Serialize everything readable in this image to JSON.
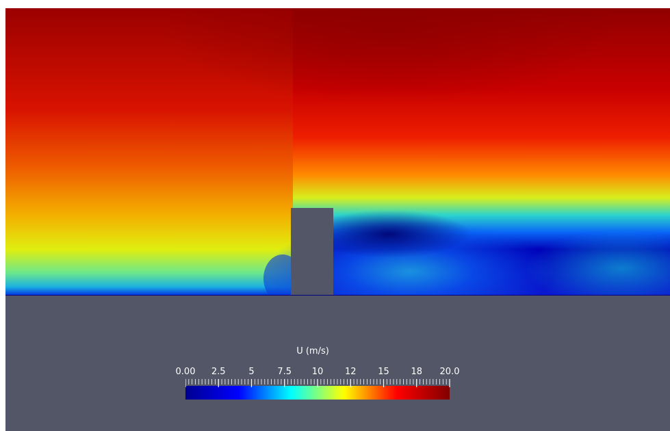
{
  "chart_data": {
    "type": "heatmap",
    "title": "",
    "colorbar": {
      "title": "U (m/s)",
      "range": [
        0,
        20
      ],
      "tick_values": [
        0,
        2.5,
        5,
        7.5,
        10,
        12.5,
        15,
        17.5,
        20
      ],
      "tick_labels": [
        "0.00",
        "2.5",
        "5",
        "7.5",
        "10",
        "12",
        "15",
        "18",
        "20.0"
      ],
      "colormap": "jet",
      "colors": [
        "#00008f",
        "#0000ff",
        "#00ffff",
        "#ffff00",
        "#ff0000",
        "#800000"
      ]
    },
    "field_description_values": {
      "freestream_top_m_s": 19.5,
      "upstream_near_ground_m_s": 8.0,
      "wake_recirculation_m_s": 1.0,
      "wake_far_downstream_m_s": 7.0
    },
    "colors": {
      "background": "#535667",
      "obstacle": "#535667",
      "label_text": "#ffffff"
    }
  }
}
